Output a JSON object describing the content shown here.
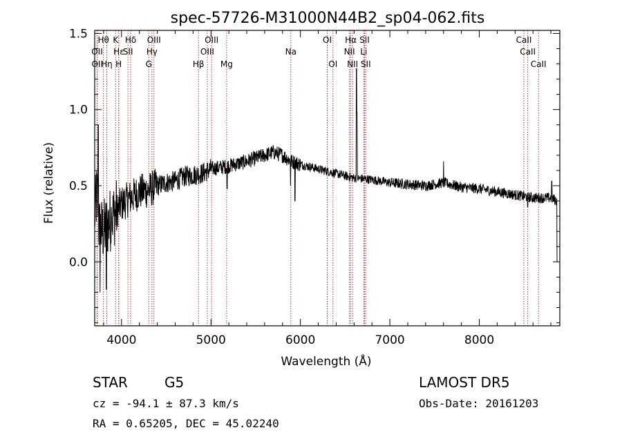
{
  "chart_data": {
    "type": "line",
    "title": "spec-57726-M31000N44B2_sp04-062.fits",
    "xlabel": "Wavelength (Å)",
    "ylabel": "Flux (relative)",
    "xlim": [
      3700,
      8900
    ],
    "ylim": [
      -0.42,
      1.52
    ],
    "x_ticks": [
      {
        "v": 4000,
        "label": "4000"
      },
      {
        "v": 5000,
        "label": "5000"
      },
      {
        "v": 6000,
        "label": "6000"
      },
      {
        "v": 7000,
        "label": "7000"
      },
      {
        "v": 8000,
        "label": "8000"
      }
    ],
    "y_ticks": [
      {
        "v": 0.0,
        "label": "0.0"
      },
      {
        "v": 0.5,
        "label": "0.5"
      },
      {
        "v": 1.0,
        "label": "1.0"
      },
      {
        "v": 1.5,
        "label": "1.5"
      }
    ],
    "spectrum_anchors": [
      [
        3700,
        0.3
      ],
      [
        3725,
        0.45
      ],
      [
        3750,
        0.22
      ],
      [
        3800,
        0.2
      ],
      [
        3850,
        0.25
      ],
      [
        3900,
        0.3
      ],
      [
        4000,
        0.38
      ],
      [
        4100,
        0.42
      ],
      [
        4200,
        0.46
      ],
      [
        4300,
        0.47
      ],
      [
        4400,
        0.5
      ],
      [
        4500,
        0.52
      ],
      [
        4600,
        0.53
      ],
      [
        4700,
        0.56
      ],
      [
        4800,
        0.57
      ],
      [
        4900,
        0.58
      ],
      [
        5000,
        0.61
      ],
      [
        5200,
        0.63
      ],
      [
        5400,
        0.66
      ],
      [
        5600,
        0.7
      ],
      [
        5700,
        0.72
      ],
      [
        5800,
        0.7
      ],
      [
        5900,
        0.66
      ],
      [
        6000,
        0.64
      ],
      [
        6200,
        0.61
      ],
      [
        6400,
        0.58
      ],
      [
        6600,
        0.55
      ],
      [
        6800,
        0.54
      ],
      [
        7000,
        0.52
      ],
      [
        7200,
        0.51
      ],
      [
        7400,
        0.5
      ],
      [
        7600,
        0.52
      ],
      [
        7800,
        0.49
      ],
      [
        8000,
        0.48
      ],
      [
        8200,
        0.46
      ],
      [
        8400,
        0.44
      ],
      [
        8600,
        0.42
      ],
      [
        8800,
        0.42
      ],
      [
        8870,
        0.4
      ]
    ],
    "spectrum_spikes": [
      {
        "x": 3740,
        "y": 0.9
      },
      {
        "x": 3760,
        "y": -0.2
      },
      {
        "x": 3830,
        "y": -0.18
      },
      {
        "x": 3890,
        "y": 0.3
      },
      {
        "x": 5180,
        "y": 0.48
      },
      {
        "x": 5890,
        "y": 0.5
      },
      {
        "x": 5940,
        "y": 0.4
      },
      {
        "x": 6627,
        "y": 1.27
      },
      {
        "x": 6633,
        "y": 0.98
      },
      {
        "x": 7600,
        "y": 0.66
      },
      {
        "x": 8540,
        "y": 0.36
      },
      {
        "x": 8810,
        "y": 0.53
      },
      {
        "x": 8870,
        "y": 0.0
      }
    ],
    "lines": [
      {
        "label": "Hθ",
        "x": 3798,
        "row": 1
      },
      {
        "label": "Hε",
        "x": 3970,
        "row": 2
      },
      {
        "label": "K",
        "x": 3934,
        "row": 1
      },
      {
        "label": "Hδ",
        "x": 4102,
        "row": 1
      },
      {
        "label": "OIII",
        "x": 4363,
        "row": 1
      },
      {
        "label": "OIII",
        "x": 5007,
        "row": 1
      },
      {
        "label": "OI",
        "x": 6300,
        "row": 1
      },
      {
        "label": "Hα",
        "x": 6563,
        "row": 1
      },
      {
        "label": "SII",
        "x": 6717,
        "row": 1
      },
      {
        "label": "CaII",
        "x": 8498,
        "row": 1
      },
      {
        "label": "OII",
        "x": 3727,
        "row": 2
      },
      {
        "label": "SII",
        "x": 4072,
        "row": 2
      },
      {
        "label": "Hγ",
        "x": 4340,
        "row": 2
      },
      {
        "label": "OIII",
        "x": 4959,
        "row": 2
      },
      {
        "label": "Na",
        "x": 5893,
        "row": 2
      },
      {
        "label": "NII",
        "x": 6548,
        "row": 2
      },
      {
        "label": "Li",
        "x": 6708,
        "row": 2
      },
      {
        "label": "CaII",
        "x": 8542,
        "row": 2
      },
      {
        "label": "OII",
        "x": 3729,
        "row": 3
      },
      {
        "label": "Hη",
        "x": 3835,
        "row": 3
      },
      {
        "label": "H",
        "x": 3968,
        "row": 3
      },
      {
        "label": "G",
        "x": 4305,
        "row": 3
      },
      {
        "label": "Hβ",
        "x": 4861,
        "row": 3
      },
      {
        "label": "Mg",
        "x": 5175,
        "row": 3
      },
      {
        "label": "OI",
        "x": 6364,
        "row": 3
      },
      {
        "label": "NII",
        "x": 6583,
        "row": 3
      },
      {
        "label": "SII",
        "x": 6731,
        "row": 3
      },
      {
        "label": "CaII",
        "x": 8662,
        "row": 3
      }
    ]
  },
  "info": {
    "class": "STAR",
    "subclass": "G5",
    "survey": "LAMOST DR5",
    "cz_line": "cz = -94.1 ± 87.3 km/s",
    "obs_date": "Obs-Date: 20161203",
    "coords": "RA =    0.65205, DEC =  45.02240"
  },
  "colors": {
    "line_markers": "#b22222",
    "spectrum": "#000000"
  }
}
